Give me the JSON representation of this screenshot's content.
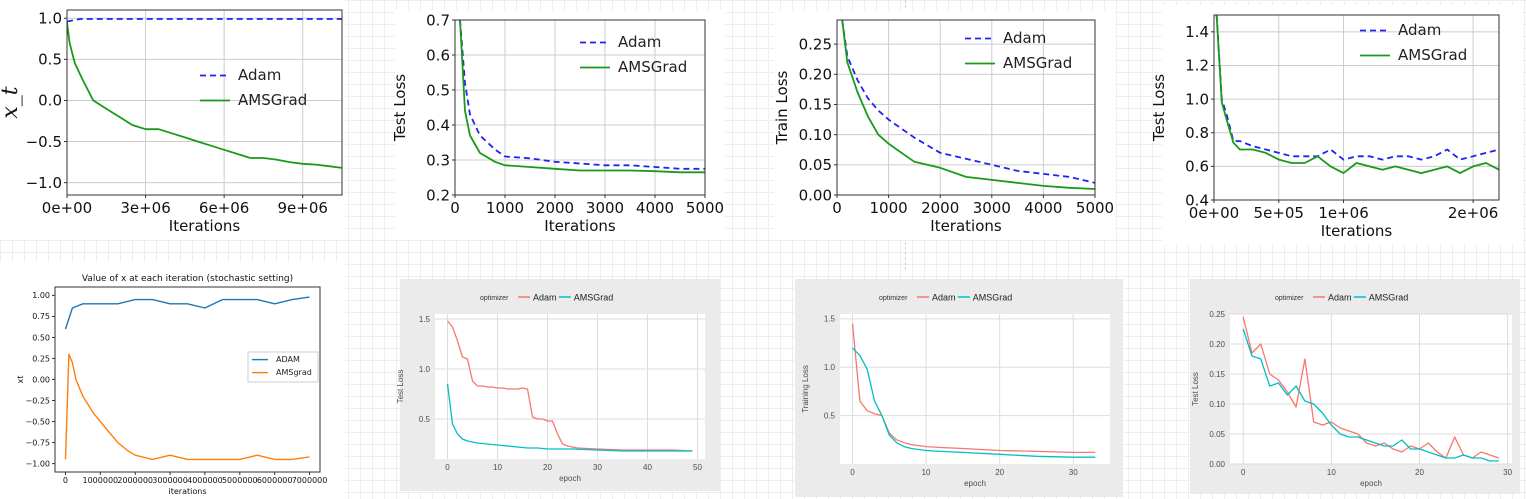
{
  "chart_data": [
    {
      "id": "p1",
      "type": "line",
      "title": "",
      "xlabel": "Iterations",
      "ylabel": "x_t",
      "xlim": [
        0,
        10500000
      ],
      "ylim": [
        -1.15,
        1.1
      ],
      "xticks": [
        0,
        3000000,
        6000000,
        9000000
      ],
      "xticklabels": [
        "0e+00",
        "3e+06",
        "6e+06",
        "9e+06"
      ],
      "yticks": [
        1.0,
        0.5,
        0.0,
        -0.5,
        -1.0
      ],
      "yticklabels": [
        "1.0",
        "0.5",
        "0.0",
        "−0.5",
        "−1.0"
      ],
      "grid": true,
      "legend": "center-right",
      "series": [
        {
          "name": "Adam",
          "color": "#2222ee",
          "dash": true,
          "x": [
            0,
            500000,
            2000000,
            4000000,
            6000000,
            8000000,
            10500000
          ],
          "y": [
            0.96,
            0.99,
            0.99,
            0.99,
            0.99,
            0.99,
            0.99
          ]
        },
        {
          "name": "AMSGrad",
          "color": "#1a9a1a",
          "dash": false,
          "x": [
            0,
            100000,
            300000,
            600000,
            1000000,
            1500000,
            2000000,
            2500000,
            3000000,
            3500000,
            4000000,
            4500000,
            5000000,
            5500000,
            6000000,
            6500000,
            7000000,
            7500000,
            8000000,
            8500000,
            9000000,
            9500000,
            10000000,
            10500000
          ],
          "y": [
            0.95,
            0.7,
            0.45,
            0.25,
            0.0,
            -0.1,
            -0.2,
            -0.3,
            -0.35,
            -0.35,
            -0.4,
            -0.45,
            -0.5,
            -0.55,
            -0.6,
            -0.65,
            -0.7,
            -0.7,
            -0.72,
            -0.75,
            -0.77,
            -0.78,
            -0.8,
            -0.82
          ]
        }
      ]
    },
    {
      "id": "p2",
      "type": "line",
      "title": "",
      "xlabel": "Iterations",
      "ylabel": "Test Loss",
      "xlim": [
        0,
        5000
      ],
      "ylim": [
        0.2,
        0.7
      ],
      "xticks": [
        0,
        1000,
        2000,
        3000,
        4000,
        5000
      ],
      "xticklabels": [
        "0",
        "1000",
        "2000",
        "3000",
        "4000",
        "5000"
      ],
      "yticks": [
        0.2,
        0.3,
        0.4,
        0.5,
        0.6,
        0.7
      ],
      "yticklabels": [
        "0.2",
        "0.3",
        "0.4",
        "0.5",
        "0.6",
        "0.7"
      ],
      "grid": true,
      "legend": "top-right",
      "series": [
        {
          "name": "Adam",
          "color": "#2222ee",
          "dash": true,
          "x": [
            100,
            200,
            300,
            500,
            800,
            1000,
            1500,
            2000,
            2500,
            3000,
            3500,
            4000,
            4500,
            5000
          ],
          "y": [
            0.7,
            0.52,
            0.43,
            0.37,
            0.33,
            0.31,
            0.305,
            0.295,
            0.29,
            0.285,
            0.285,
            0.28,
            0.275,
            0.275
          ]
        },
        {
          "name": "AMSGrad",
          "color": "#1a9a1a",
          "dash": false,
          "x": [
            100,
            200,
            300,
            500,
            800,
            1000,
            1500,
            2000,
            2500,
            3000,
            3500,
            4000,
            4500,
            5000
          ],
          "y": [
            0.7,
            0.44,
            0.37,
            0.32,
            0.295,
            0.285,
            0.28,
            0.275,
            0.27,
            0.27,
            0.27,
            0.268,
            0.265,
            0.265
          ]
        }
      ]
    },
    {
      "id": "p3",
      "type": "line",
      "title": "",
      "xlabel": "Iterations",
      "ylabel": "Train Loss",
      "xlim": [
        0,
        5000
      ],
      "ylim": [
        0,
        0.29
      ],
      "xticks": [
        0,
        1000,
        2000,
        3000,
        4000,
        5000
      ],
      "xticklabels": [
        "0",
        "1000",
        "2000",
        "3000",
        "4000",
        "5000"
      ],
      "yticks": [
        0,
        0.05,
        0.1,
        0.15,
        0.2,
        0.25
      ],
      "yticklabels": [
        "0.00",
        "0.05",
        "0.10",
        "0.15",
        "0.20",
        "0.25"
      ],
      "grid": true,
      "legend": "top-right",
      "series": [
        {
          "name": "Adam",
          "color": "#2222ee",
          "dash": true,
          "x": [
            100,
            200,
            400,
            600,
            800,
            1000,
            1500,
            2000,
            2500,
            3000,
            3500,
            4000,
            4500,
            5000
          ],
          "y": [
            0.29,
            0.23,
            0.19,
            0.16,
            0.14,
            0.125,
            0.095,
            0.07,
            0.06,
            0.05,
            0.04,
            0.035,
            0.03,
            0.02
          ]
        },
        {
          "name": "AMSGrad",
          "color": "#1a9a1a",
          "dash": false,
          "x": [
            100,
            200,
            400,
            600,
            800,
            1000,
            1500,
            2000,
            2500,
            3000,
            3500,
            4000,
            4500,
            5000
          ],
          "y": [
            0.29,
            0.22,
            0.17,
            0.13,
            0.1,
            0.085,
            0.055,
            0.045,
            0.03,
            0.025,
            0.02,
            0.015,
            0.012,
            0.01
          ]
        }
      ]
    },
    {
      "id": "p4",
      "type": "line",
      "title": "",
      "xlabel": "Iterations",
      "ylabel": "Test Loss",
      "xlim": [
        0,
        2200000
      ],
      "ylim": [
        0.4,
        1.5
      ],
      "xticks": [
        0,
        500000,
        1000000,
        2000000
      ],
      "xticklabels": [
        "0e+00",
        "5e+05",
        "1e+06",
        "2e+06"
      ],
      "yticks": [
        0.4,
        0.6,
        0.8,
        1.0,
        1.2,
        1.4
      ],
      "yticklabels": [
        "0.4",
        "0.6",
        "0.8",
        "1.0",
        "1.2",
        "1.4"
      ],
      "grid": true,
      "legend": "top-right",
      "series": [
        {
          "name": "Adam",
          "color": "#2222ee",
          "dash": true,
          "x": [
            20000,
            60000,
            100000,
            150000,
            200000,
            300000,
            400000,
            500000,
            600000,
            700000,
            800000,
            900000,
            1000000,
            1100000,
            1200000,
            1300000,
            1400000,
            1500000,
            1600000,
            1700000,
            1800000,
            1900000,
            2000000,
            2100000,
            2200000
          ],
          "y": [
            1.5,
            1.0,
            0.9,
            0.75,
            0.75,
            0.72,
            0.7,
            0.68,
            0.66,
            0.66,
            0.66,
            0.7,
            0.64,
            0.66,
            0.66,
            0.64,
            0.66,
            0.66,
            0.64,
            0.66,
            0.7,
            0.64,
            0.66,
            0.68,
            0.7
          ]
        },
        {
          "name": "AMSGrad",
          "color": "#1a9a1a",
          "dash": false,
          "x": [
            20000,
            60000,
            100000,
            150000,
            200000,
            300000,
            400000,
            500000,
            600000,
            700000,
            800000,
            900000,
            1000000,
            1100000,
            1200000,
            1300000,
            1400000,
            1500000,
            1600000,
            1700000,
            1800000,
            1900000,
            2000000,
            2100000,
            2200000
          ],
          "y": [
            1.5,
            0.98,
            0.87,
            0.74,
            0.7,
            0.7,
            0.68,
            0.64,
            0.62,
            0.62,
            0.66,
            0.6,
            0.56,
            0.62,
            0.6,
            0.58,
            0.6,
            0.58,
            0.56,
            0.58,
            0.6,
            0.56,
            0.6,
            0.62,
            0.58
          ]
        }
      ]
    },
    {
      "id": "p5",
      "type": "line",
      "title": "Value of x at each iteration (stochastic setting)",
      "xlabel": "iterations",
      "ylabel": "xt",
      "xlim": [
        -300000,
        7300000
      ],
      "ylim": [
        -1.1,
        1.1
      ],
      "xticks": [
        0,
        1000000,
        2000000,
        3000000,
        4000000,
        5000000,
        6000000,
        7000000
      ],
      "xticklabels": [
        "0",
        "1000000",
        "2000000",
        "3000000",
        "4000000",
        "5000000",
        "6000000",
        "7000000"
      ],
      "yticks": [
        1.0,
        0.75,
        0.5,
        0.25,
        0.0,
        -0.25,
        -0.5,
        -0.75,
        -1.0
      ],
      "yticklabels": [
        "1.00",
        "0.75",
        "0.50",
        "0.25",
        "0.00",
        "−0.25",
        "−0.50",
        "−0.75",
        "−1.00"
      ],
      "grid": false,
      "legend": "center-right",
      "series": [
        {
          "name": "ADAM",
          "color": "#1f77b4",
          "dash": false,
          "x": [
            0,
            200000,
            500000,
            1000000,
            1500000,
            2000000,
            2500000,
            3000000,
            3500000,
            4000000,
            4500000,
            5000000,
            5500000,
            6000000,
            6500000,
            7000000
          ],
          "y": [
            0.6,
            0.85,
            0.9,
            0.9,
            0.9,
            0.95,
            0.95,
            0.9,
            0.9,
            0.85,
            0.95,
            0.95,
            0.95,
            0.9,
            0.95,
            0.98
          ]
        },
        {
          "name": "AMSgrad",
          "color": "#ff7f0e",
          "dash": false,
          "x": [
            0,
            100000,
            200000,
            300000,
            500000,
            800000,
            1000000,
            1200000,
            1500000,
            1800000,
            2000000,
            2500000,
            3000000,
            3500000,
            4000000,
            4500000,
            5000000,
            5500000,
            6000000,
            6500000,
            7000000
          ],
          "y": [
            -0.95,
            0.3,
            0.2,
            0.0,
            -0.2,
            -0.4,
            -0.5,
            -0.6,
            -0.75,
            -0.85,
            -0.9,
            -0.95,
            -0.9,
            -0.95,
            -0.95,
            -0.95,
            -0.95,
            -0.9,
            -0.95,
            -0.95,
            -0.92
          ]
        }
      ]
    },
    {
      "id": "p6",
      "type": "line",
      "title": "",
      "xlabel": "epoch",
      "ylabel": "Test Loss",
      "legend_title": "optimizer",
      "xlim": [
        -2.5,
        51.5
      ],
      "ylim": [
        0.1,
        1.55
      ],
      "xticks": [
        0,
        10,
        20,
        30,
        40,
        50
      ],
      "xticklabels": [
        "0",
        "10",
        "20",
        "30",
        "40",
        "50"
      ],
      "yticks": [
        0.5,
        1.0,
        1.5
      ],
      "yticklabels": [
        "0.5",
        "1.0",
        "1.5"
      ],
      "grid": true,
      "legend": "top",
      "series": [
        {
          "name": "Adam",
          "color": "#f8766d",
          "dash": false,
          "x": [
            0,
            1,
            2,
            3,
            4,
            5,
            6,
            7,
            8,
            9,
            10,
            11,
            12,
            13,
            14,
            15,
            16,
            17,
            18,
            19,
            20,
            21,
            22,
            23,
            24,
            26,
            30,
            35,
            40,
            45,
            49
          ],
          "y": [
            1.48,
            1.42,
            1.28,
            1.12,
            1.1,
            0.88,
            0.83,
            0.83,
            0.82,
            0.82,
            0.81,
            0.81,
            0.8,
            0.8,
            0.8,
            0.81,
            0.8,
            0.52,
            0.5,
            0.5,
            0.48,
            0.48,
            0.35,
            0.25,
            0.23,
            0.21,
            0.2,
            0.19,
            0.19,
            0.19,
            0.18
          ]
        },
        {
          "name": "AMSGrad",
          "color": "#00bfc4",
          "dash": false,
          "x": [
            0,
            1,
            2,
            3,
            4,
            5,
            6,
            8,
            10,
            12,
            14,
            16,
            18,
            20,
            25,
            30,
            35,
            40,
            45,
            49
          ],
          "y": [
            0.85,
            0.45,
            0.35,
            0.3,
            0.28,
            0.27,
            0.26,
            0.25,
            0.24,
            0.23,
            0.22,
            0.21,
            0.21,
            0.2,
            0.2,
            0.19,
            0.18,
            0.18,
            0.18,
            0.18
          ]
        }
      ]
    },
    {
      "id": "p7",
      "type": "line",
      "title": "",
      "xlabel": "epoch",
      "ylabel": "Training Loss",
      "legend_title": "optimizer",
      "xlim": [
        -1.7,
        35
      ],
      "ylim": [
        0,
        1.55
      ],
      "xticks": [
        0,
        10,
        20,
        30
      ],
      "xticklabels": [
        "0",
        "10",
        "20",
        "30"
      ],
      "yticks": [
        0.5,
        1.0,
        1.5
      ],
      "yticklabels": [
        "0.5",
        "1.0",
        "1.5"
      ],
      "grid": true,
      "legend": "top",
      "series": [
        {
          "name": "Adam",
          "color": "#f8766d",
          "dash": false,
          "x": [
            0,
            1,
            2,
            3,
            4,
            5,
            6,
            7,
            8,
            10,
            12,
            15,
            20,
            25,
            30,
            33
          ],
          "y": [
            1.45,
            0.65,
            0.55,
            0.52,
            0.5,
            0.32,
            0.25,
            0.22,
            0.2,
            0.18,
            0.17,
            0.16,
            0.14,
            0.13,
            0.12,
            0.12
          ]
        },
        {
          "name": "AMSGrad",
          "color": "#00bfc4",
          "dash": false,
          "x": [
            0,
            1,
            2,
            3,
            4,
            5,
            6,
            7,
            8,
            10,
            12,
            15,
            20,
            25,
            30,
            33
          ],
          "y": [
            1.2,
            1.12,
            0.98,
            0.65,
            0.5,
            0.3,
            0.22,
            0.18,
            0.16,
            0.14,
            0.13,
            0.12,
            0.1,
            0.08,
            0.07,
            0.07
          ]
        }
      ]
    },
    {
      "id": "p8",
      "type": "line",
      "title": "",
      "xlabel": "epoch",
      "ylabel": "Test Loss",
      "legend_title": "optimizer",
      "xlim": [
        -1.5,
        30.5
      ],
      "ylim": [
        0,
        0.25
      ],
      "xticks": [
        0,
        10,
        20,
        30
      ],
      "xticklabels": [
        "0",
        "10",
        "20",
        "30"
      ],
      "yticks": [
        0.0,
        0.05,
        0.1,
        0.15,
        0.2,
        0.25
      ],
      "yticklabels": [
        "0.00",
        "0.05",
        "0.10",
        "0.15",
        "0.20",
        "0.25"
      ],
      "grid": true,
      "legend": "top",
      "series": [
        {
          "name": "Adam",
          "color": "#f8766d",
          "dash": false,
          "x": [
            0,
            1,
            2,
            3,
            4,
            5,
            6,
            7,
            8,
            9,
            10,
            11,
            12,
            13,
            14,
            15,
            16,
            17,
            18,
            19,
            20,
            21,
            22,
            23,
            24,
            25,
            26,
            27,
            28,
            29
          ],
          "y": [
            0.245,
            0.185,
            0.2,
            0.15,
            0.14,
            0.12,
            0.095,
            0.175,
            0.07,
            0.065,
            0.07,
            0.06,
            0.055,
            0.05,
            0.035,
            0.03,
            0.035,
            0.025,
            0.02,
            0.03,
            0.025,
            0.035,
            0.02,
            0.01,
            0.045,
            0.015,
            0.01,
            0.02,
            0.015,
            0.01
          ]
        },
        {
          "name": "AMSGrad",
          "color": "#00bfc4",
          "dash": false,
          "x": [
            0,
            1,
            2,
            3,
            4,
            5,
            6,
            7,
            8,
            9,
            10,
            11,
            12,
            13,
            14,
            15,
            16,
            17,
            18,
            19,
            20,
            21,
            22,
            23,
            24,
            25,
            26,
            27,
            28,
            29
          ],
          "y": [
            0.225,
            0.18,
            0.175,
            0.13,
            0.135,
            0.115,
            0.13,
            0.105,
            0.1,
            0.085,
            0.065,
            0.05,
            0.045,
            0.045,
            0.04,
            0.035,
            0.03,
            0.03,
            0.04,
            0.025,
            0.025,
            0.02,
            0.015,
            0.01,
            0.01,
            0.015,
            0.01,
            0.01,
            0.005,
            0.005
          ]
        }
      ]
    }
  ]
}
